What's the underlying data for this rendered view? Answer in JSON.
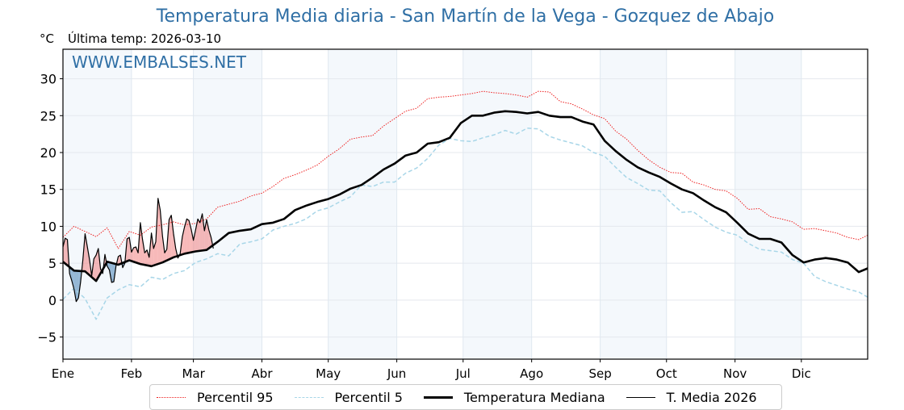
{
  "chart_data": {
    "type": "line",
    "title": "Temperatura Media diaria - San Martín de la Vega - Gozquez de Abajo",
    "unit_label": "°C",
    "subtitle": "Última temp: 2026-03-10",
    "watermark": "WWW.EMBALSES.NET",
    "xlabel": "",
    "ylabel": "°C",
    "ylim": [
      -8,
      34
    ],
    "xlim_days": [
      1,
      365
    ],
    "yticks": [
      -5,
      0,
      5,
      10,
      15,
      20,
      25,
      30
    ],
    "ytick_labels": [
      "−5",
      "0",
      "5",
      "10",
      "15",
      "20",
      "25",
      "30"
    ],
    "months": [
      {
        "label": "Ene",
        "day": 1
      },
      {
        "label": "Feb",
        "day": 32
      },
      {
        "label": "Mar",
        "day": 60
      },
      {
        "label": "Abr",
        "day": 91
      },
      {
        "label": "May",
        "day": 121
      },
      {
        "label": "Jun",
        "day": 152
      },
      {
        "label": "Jul",
        "day": 182
      },
      {
        "label": "Ago",
        "day": 213
      },
      {
        "label": "Sep",
        "day": 244
      },
      {
        "label": "Oct",
        "day": 274
      },
      {
        "label": "Nov",
        "day": 305
      },
      {
        "label": "Dic",
        "day": 335
      }
    ],
    "shaded_months": [
      "Ene",
      "Mar",
      "May",
      "Jul",
      "Sep",
      "Nov"
    ],
    "grid": true,
    "legend_position": "bottom-center",
    "series": [
      {
        "name": "Percentil 95",
        "color": "#ee2222",
        "style": "dotted",
        "x_days": [
          1,
          6,
          11,
          16,
          21,
          26,
          31,
          36,
          41,
          46,
          51,
          56,
          61,
          66,
          71,
          76,
          81,
          86,
          91,
          96,
          101,
          106,
          111,
          116,
          121,
          126,
          131,
          136,
          141,
          146,
          151,
          156,
          161,
          166,
          171,
          176,
          181,
          186,
          191,
          196,
          201,
          206,
          211,
          216,
          221,
          226,
          231,
          236,
          241,
          246,
          251,
          256,
          261,
          266,
          271,
          276,
          281,
          286,
          291,
          296,
          301,
          306,
          311,
          316,
          321,
          326,
          331,
          336,
          341,
          346,
          351,
          356,
          361,
          365
        ],
        "values": [
          8.5,
          10.0,
          9.3,
          8.6,
          9.8,
          7.0,
          9.3,
          8.8,
          9.9,
          10.2,
          10.6,
          10.2,
          10.4,
          11.0,
          12.6,
          13.0,
          13.4,
          14.1,
          14.5,
          15.4,
          16.5,
          17.0,
          17.6,
          18.3,
          19.5,
          20.5,
          21.8,
          22.1,
          22.3,
          23.6,
          24.6,
          25.6,
          26.0,
          27.3,
          27.5,
          27.6,
          27.8,
          28.0,
          28.3,
          28.1,
          28.0,
          27.8,
          27.5,
          28.3,
          28.2,
          26.9,
          26.6,
          25.9,
          25.1,
          24.6,
          22.9,
          21.8,
          20.3,
          19.0,
          18.0,
          17.3,
          17.2,
          16.0,
          15.6,
          15.0,
          14.8,
          13.8,
          12.3,
          12.4,
          11.3,
          11.0,
          10.6,
          9.6,
          9.7,
          9.4,
          9.1,
          8.5,
          8.2,
          8.8
        ]
      },
      {
        "name": "Percentil 5",
        "color": "#a8d6e8",
        "style": "dashed",
        "x_days": [
          1,
          6,
          11,
          16,
          21,
          26,
          31,
          36,
          41,
          46,
          51,
          56,
          61,
          66,
          71,
          76,
          81,
          86,
          91,
          96,
          101,
          106,
          111,
          116,
          121,
          126,
          131,
          136,
          141,
          146,
          151,
          156,
          161,
          166,
          171,
          176,
          181,
          186,
          191,
          196,
          201,
          206,
          211,
          216,
          221,
          226,
          231,
          236,
          241,
          246,
          251,
          256,
          261,
          266,
          271,
          276,
          281,
          286,
          291,
          296,
          301,
          306,
          311,
          316,
          321,
          326,
          331,
          336,
          341,
          346,
          351,
          356,
          361,
          365
        ],
        "values": [
          0.1,
          1.6,
          0.2,
          -2.6,
          0.3,
          1.4,
          2.1,
          1.8,
          3.1,
          2.8,
          3.6,
          4.0,
          5.1,
          5.6,
          6.3,
          6.0,
          7.6,
          7.9,
          8.3,
          9.5,
          10.0,
          10.4,
          11.0,
          12.1,
          12.5,
          13.3,
          14.0,
          15.6,
          15.4,
          16.0,
          16.0,
          17.2,
          17.9,
          19.2,
          21.0,
          21.9,
          21.6,
          21.5,
          22.0,
          22.4,
          23.0,
          22.5,
          23.3,
          23.2,
          22.2,
          21.7,
          21.3,
          20.9,
          20.0,
          19.5,
          18.0,
          16.6,
          15.8,
          14.9,
          14.8,
          13.2,
          11.9,
          12.0,
          10.9,
          9.9,
          9.2,
          8.8,
          7.7,
          6.9,
          6.7,
          6.5,
          5.5,
          5.0,
          3.2,
          2.5,
          2.0,
          1.5,
          1.1,
          0.4
        ]
      },
      {
        "name": "Temperatura Mediana",
        "color": "#000000",
        "style": "solid-thick",
        "x_days": [
          1,
          6,
          11,
          16,
          21,
          26,
          31,
          36,
          41,
          46,
          51,
          56,
          61,
          66,
          71,
          76,
          81,
          86,
          91,
          96,
          101,
          106,
          111,
          116,
          121,
          126,
          131,
          136,
          141,
          146,
          151,
          156,
          161,
          166,
          171,
          176,
          181,
          186,
          191,
          196,
          201,
          206,
          211,
          216,
          221,
          226,
          231,
          236,
          241,
          246,
          251,
          256,
          261,
          266,
          271,
          276,
          281,
          286,
          291,
          296,
          301,
          306,
          311,
          316,
          321,
          326,
          331,
          336,
          341,
          346,
          351,
          356,
          361,
          365
        ],
        "values": [
          5.2,
          4.0,
          3.9,
          2.6,
          5.2,
          4.8,
          5.4,
          4.9,
          4.6,
          5.1,
          5.8,
          6.3,
          6.6,
          6.8,
          7.9,
          9.1,
          9.4,
          9.6,
          10.3,
          10.5,
          11.0,
          12.2,
          12.8,
          13.3,
          13.7,
          14.3,
          15.1,
          15.6,
          16.6,
          17.7,
          18.5,
          19.6,
          20.0,
          21.2,
          21.4,
          22.0,
          24.0,
          25.0,
          25.0,
          25.4,
          25.6,
          25.5,
          25.3,
          25.5,
          25.0,
          24.8,
          24.8,
          24.2,
          23.8,
          21.6,
          20.2,
          19.0,
          18.0,
          17.3,
          16.7,
          15.8,
          15.0,
          14.5,
          13.5,
          12.6,
          11.9,
          10.5,
          9.0,
          8.3,
          8.3,
          7.8,
          6.1,
          5.1,
          5.5,
          5.7,
          5.5,
          5.1,
          3.8,
          4.3
        ]
      },
      {
        "name": "T. Media 2026",
        "color": "#000000",
        "style": "solid-thin",
        "x_days": [
          1,
          2,
          3,
          4,
          5,
          6,
          7,
          8,
          9,
          10,
          11,
          12,
          13,
          14,
          15,
          16,
          17,
          18,
          19,
          20,
          21,
          22,
          23,
          24,
          25,
          26,
          27,
          28,
          29,
          30,
          31,
          32,
          33,
          34,
          35,
          36,
          37,
          38,
          39,
          40,
          41,
          42,
          43,
          44,
          45,
          46,
          47,
          48,
          49,
          50,
          51,
          52,
          53,
          54,
          55,
          56,
          57,
          58,
          59,
          60,
          61,
          62,
          63,
          64,
          65,
          66,
          67,
          68,
          69
        ],
        "values": [
          7.2,
          8.4,
          8.2,
          3.6,
          2.6,
          1.5,
          -0.2,
          0.3,
          2.5,
          5.5,
          9.0,
          7.3,
          5.5,
          3.3,
          5.6,
          6.1,
          7.0,
          4.2,
          3.6,
          6.2,
          4.6,
          4.1,
          2.4,
          2.5,
          4.6,
          5.9,
          6.1,
          4.4,
          5.0,
          8.3,
          8.5,
          6.5,
          7.1,
          7.2,
          6.4,
          10.5,
          8.2,
          6.4,
          6.8,
          5.8,
          9.1,
          7.0,
          7.9,
          13.8,
          12.2,
          8.7,
          6.4,
          6.9,
          10.9,
          11.5,
          9.0,
          7.0,
          5.7,
          6.3,
          8.6,
          9.9,
          11.0,
          10.8,
          9.6,
          8.1,
          9.5,
          11.0,
          10.5,
          11.7,
          9.4,
          10.9,
          9.5,
          8.5,
          7.0
        ]
      }
    ],
    "fill_between_2026_and_median": {
      "above_color": "#f08080",
      "below_color": "#4682b4"
    }
  }
}
